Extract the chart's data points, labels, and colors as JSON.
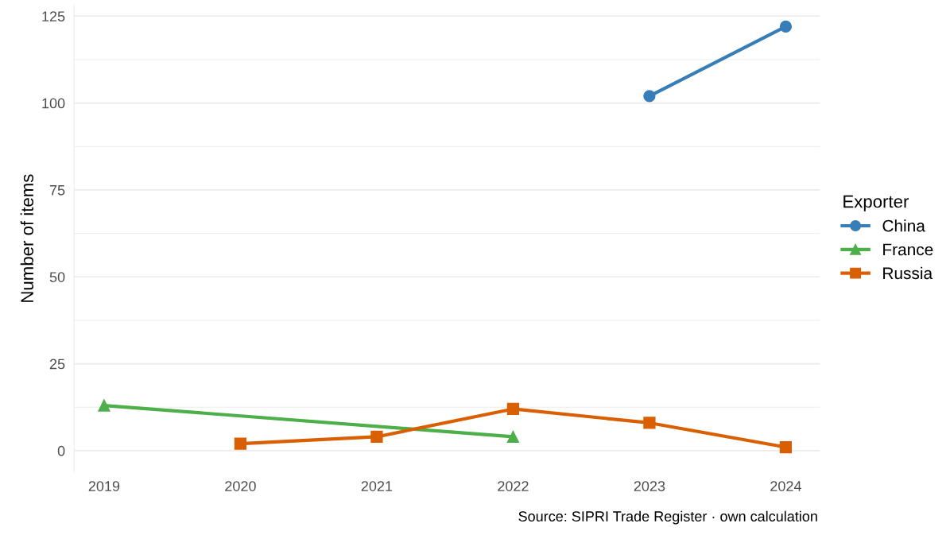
{
  "chart_data": {
    "type": "line",
    "ylabel": "Number of items",
    "legend_title": "Exporter",
    "legend": "right",
    "series": [
      {
        "name": "China",
        "color": "#377eb8",
        "marker": "circle",
        "x": [
          2023,
          2024
        ],
        "values": [
          102,
          122
        ]
      },
      {
        "name": "France",
        "color": "#4daf4a",
        "marker": "triangle",
        "x": [
          2019,
          2022
        ],
        "values": [
          13,
          4
        ]
      },
      {
        "name": "Russia",
        "color": "#d95f02",
        "marker": "square",
        "x": [
          2020,
          2021,
          2022,
          2023,
          2024
        ],
        "values": [
          2,
          4,
          12,
          8,
          1
        ]
      }
    ],
    "xlim": [
      2018.78,
      2024.25
    ],
    "xticks": [
      2019,
      2020,
      2021,
      2022,
      2023,
      2024
    ],
    "ylim": [
      -6.1,
      128.1
    ],
    "yticks": [
      0,
      25,
      50,
      75,
      100,
      125
    ],
    "grid": "y",
    "line_style": "solid",
    "annotations": [
      "Source: SIPRI Trade Register · own calculation"
    ]
  }
}
